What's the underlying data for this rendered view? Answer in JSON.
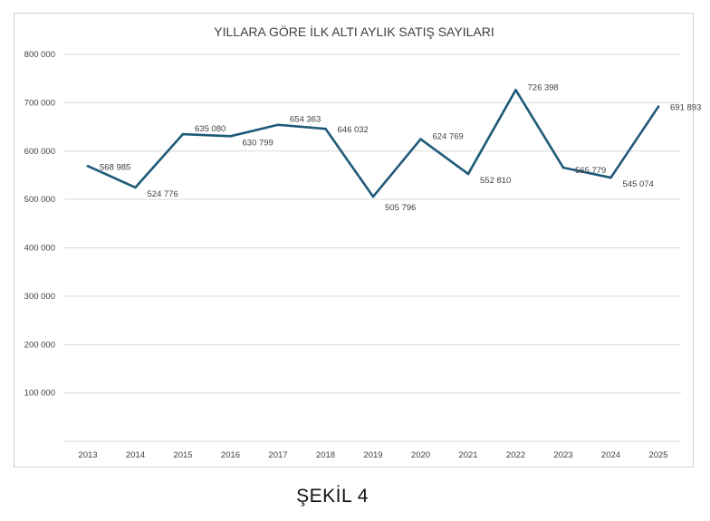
{
  "chart_data": {
    "type": "line",
    "title": "YILLARA GÖRE İLK ALTI AYLIK SATIŞ SAYILARI",
    "xlabel": "",
    "ylabel": "",
    "categories": [
      "2013",
      "2014",
      "2015",
      "2016",
      "2017",
      "2018",
      "2019",
      "2020",
      "2021",
      "2022",
      "2023",
      "2024",
      "2025"
    ],
    "series": [
      {
        "values": [
          568985,
          524776,
          635080,
          630799,
          654363,
          646032,
          505796,
          624769,
          552810,
          726398,
          565779,
          545074,
          691893
        ],
        "labels": [
          "568 985",
          "524 776",
          "635 080",
          "630 799",
          "654 363",
          "646 032",
          "505 796",
          "624 769",
          "552 810",
          "726 398",
          "565 779",
          "545 074",
          "691 893"
        ]
      }
    ],
    "ylim": [
      0,
      800000
    ],
    "yticks": [
      100000,
      200000,
      300000,
      400000,
      500000,
      600000,
      700000,
      800000
    ],
    "ytick_labels": [
      "100 000",
      "200 000",
      "300 000",
      "400 000",
      "500 000",
      "600 000",
      "700 000",
      "800 000"
    ],
    "grid": true,
    "legend": "none",
    "colors": {
      "line": "#1e5a78",
      "grid": "#d9d9d9",
      "text": "#404040"
    }
  },
  "caption": "ŞEKİL 4"
}
